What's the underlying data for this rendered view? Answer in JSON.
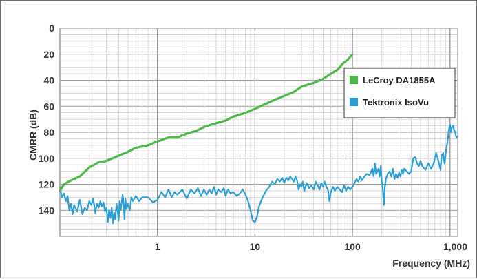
{
  "chart_data": {
    "type": "line",
    "xlabel": "Frequency (MHz)",
    "ylabel": "CMRR (dB)",
    "x_scale": "log",
    "xlim": [
      0.1,
      1200
    ],
    "ylim": [
      0,
      160
    ],
    "y_inverted": true,
    "x_ticks": [
      {
        "value": 1,
        "label": "1"
      },
      {
        "value": 10,
        "label": "10"
      },
      {
        "value": 100,
        "label": "100"
      },
      {
        "value": 1000,
        "label": "1,000"
      }
    ],
    "y_ticks": [
      {
        "value": 0,
        "label": "0"
      },
      {
        "value": 20,
        "label": "20"
      },
      {
        "value": 40,
        "label": "40"
      },
      {
        "value": 60,
        "label": "60"
      },
      {
        "value": 80,
        "label": "80"
      },
      {
        "value": 100,
        "label": "100"
      },
      {
        "value": 120,
        "label": "120"
      },
      {
        "value": 140,
        "label": "140"
      }
    ],
    "grid": true,
    "legend_position": "right",
    "series": [
      {
        "name": "LeCroy DA1855A",
        "color": "#4cb848",
        "points": [
          [
            0.1,
            125
          ],
          [
            0.11,
            120
          ],
          [
            0.13,
            117
          ],
          [
            0.16,
            114
          ],
          [
            0.2,
            107
          ],
          [
            0.25,
            103
          ],
          [
            0.3,
            102
          ],
          [
            0.4,
            98
          ],
          [
            0.5,
            95
          ],
          [
            0.6,
            92
          ],
          [
            0.8,
            90
          ],
          [
            1.0,
            87
          ],
          [
            1.3,
            84
          ],
          [
            1.6,
            84
          ],
          [
            2.0,
            81
          ],
          [
            2.5,
            79
          ],
          [
            3.0,
            76
          ],
          [
            4.0,
            73
          ],
          [
            5.0,
            71
          ],
          [
            6.0,
            68
          ],
          [
            8.0,
            65
          ],
          [
            10,
            62
          ],
          [
            13,
            58
          ],
          [
            16,
            55
          ],
          [
            20,
            52
          ],
          [
            25,
            49
          ],
          [
            30,
            45
          ],
          [
            40,
            42
          ],
          [
            50,
            39
          ],
          [
            60,
            35
          ],
          [
            70,
            32
          ],
          [
            80,
            27
          ],
          [
            90,
            24
          ],
          [
            100,
            20
          ]
        ]
      },
      {
        "name": "Tektronix IsoVu",
        "color": "#2b9fd4",
        "points": [
          [
            0.1,
            122
          ],
          [
            0.105,
            130
          ],
          [
            0.11,
            127
          ],
          [
            0.115,
            133
          ],
          [
            0.12,
            129
          ],
          [
            0.125,
            140
          ],
          [
            0.13,
            135
          ],
          [
            0.135,
            143
          ],
          [
            0.14,
            136
          ],
          [
            0.15,
            141
          ],
          [
            0.16,
            132
          ],
          [
            0.17,
            143
          ],
          [
            0.18,
            138
          ],
          [
            0.19,
            140
          ],
          [
            0.2,
            133
          ],
          [
            0.21,
            136
          ],
          [
            0.22,
            131
          ],
          [
            0.23,
            142
          ],
          [
            0.24,
            135
          ],
          [
            0.25,
            138
          ],
          [
            0.26,
            133
          ],
          [
            0.27,
            137
          ],
          [
            0.28,
            134
          ],
          [
            0.29,
            141
          ],
          [
            0.3,
            138
          ],
          [
            0.31,
            149
          ],
          [
            0.32,
            140
          ],
          [
            0.33,
            146
          ],
          [
            0.34,
            138
          ],
          [
            0.35,
            150
          ],
          [
            0.36,
            142
          ],
          [
            0.37,
            147
          ],
          [
            0.38,
            135
          ],
          [
            0.39,
            140
          ],
          [
            0.4,
            148
          ],
          [
            0.41,
            133
          ],
          [
            0.42,
            140
          ],
          [
            0.44,
            128
          ],
          [
            0.45,
            136
          ],
          [
            0.46,
            147
          ],
          [
            0.47,
            131
          ],
          [
            0.48,
            139
          ],
          [
            0.5,
            135
          ],
          [
            0.52,
            140
          ],
          [
            0.54,
            130
          ],
          [
            0.56,
            133
          ],
          [
            0.6,
            129
          ],
          [
            0.65,
            133
          ],
          [
            0.7,
            130
          ],
          [
            0.8,
            130
          ],
          [
            0.9,
            134
          ],
          [
            1.0,
            132
          ],
          [
            1.1,
            126
          ],
          [
            1.2,
            130
          ],
          [
            1.3,
            124
          ],
          [
            1.4,
            130
          ],
          [
            1.5,
            126
          ],
          [
            1.6,
            128
          ],
          [
            1.8,
            124
          ],
          [
            2.0,
            131
          ],
          [
            2.2,
            124
          ],
          [
            2.4,
            127
          ],
          [
            2.6,
            123
          ],
          [
            2.8,
            129
          ],
          [
            3.0,
            124
          ],
          [
            3.2,
            128
          ],
          [
            3.4,
            124
          ],
          [
            3.6,
            127
          ],
          [
            3.8,
            122
          ],
          [
            4.0,
            128
          ],
          [
            4.2,
            124
          ],
          [
            4.5,
            126
          ],
          [
            4.8,
            123
          ],
          [
            5.0,
            129
          ],
          [
            5.3,
            124
          ],
          [
            5.6,
            127
          ],
          [
            6.0,
            126
          ],
          [
            6.5,
            129
          ],
          [
            7.0,
            127
          ],
          [
            7.5,
            124
          ],
          [
            8.0,
            128
          ],
          [
            8.5,
            133
          ],
          [
            9.0,
            140
          ],
          [
            9.5,
            148
          ],
          [
            10,
            149
          ],
          [
            10.5,
            145
          ],
          [
            11,
            137
          ],
          [
            12,
            130
          ],
          [
            13,
            125
          ],
          [
            14,
            122
          ],
          [
            15,
            118
          ],
          [
            16,
            120
          ],
          [
            17,
            116
          ],
          [
            18,
            118
          ],
          [
            19,
            115
          ],
          [
            20,
            119
          ],
          [
            21,
            115
          ],
          [
            22,
            117
          ],
          [
            23,
            114
          ],
          [
            24,
            116
          ],
          [
            25,
            118
          ],
          [
            26,
            114
          ],
          [
            27,
            117
          ],
          [
            28,
            124
          ],
          [
            29,
            120
          ],
          [
            30,
            122
          ],
          [
            31,
            118
          ],
          [
            32,
            125
          ],
          [
            34,
            119
          ],
          [
            36,
            123
          ],
          [
            38,
            121
          ],
          [
            40,
            124
          ],
          [
            42,
            118
          ],
          [
            44,
            121
          ],
          [
            46,
            124
          ],
          [
            48,
            119
          ],
          [
            50,
            122
          ],
          [
            52,
            118
          ],
          [
            54,
            122
          ],
          [
            56,
            124
          ],
          [
            58,
            133
          ],
          [
            60,
            126
          ],
          [
            63,
            122
          ],
          [
            66,
            125
          ],
          [
            70,
            122
          ],
          [
            74,
            124
          ],
          [
            78,
            126
          ],
          [
            82,
            121
          ],
          [
            86,
            125
          ],
          [
            90,
            122
          ],
          [
            95,
            124
          ],
          [
            100,
            122
          ],
          [
            105,
            119
          ],
          [
            110,
            116
          ],
          [
            115,
            118
          ],
          [
            120,
            114
          ],
          [
            125,
            117
          ],
          [
            130,
            115
          ],
          [
            140,
            112
          ],
          [
            150,
            113
          ],
          [
            160,
            108
          ],
          [
            165,
            114
          ],
          [
            170,
            104
          ],
          [
            175,
            112
          ],
          [
            180,
            110
          ],
          [
            185,
            108
          ],
          [
            190,
            114
          ],
          [
            195,
            106
          ],
          [
            200,
            118
          ],
          [
            205,
            125
          ],
          [
            210,
            136
          ],
          [
            215,
            122
          ],
          [
            220,
            116
          ],
          [
            230,
            112
          ],
          [
            240,
            110
          ],
          [
            250,
            114
          ],
          [
            260,
            108
          ],
          [
            270,
            116
          ],
          [
            280,
            112
          ],
          [
            290,
            115
          ],
          [
            300,
            111
          ],
          [
            310,
            114
          ],
          [
            320,
            109
          ],
          [
            330,
            112
          ],
          [
            340,
            108
          ],
          [
            360,
            110
          ],
          [
            380,
            112
          ],
          [
            400,
            110
          ],
          [
            420,
            100
          ],
          [
            440,
            99
          ],
          [
            460,
            104
          ],
          [
            480,
            106
          ],
          [
            500,
            102
          ],
          [
            520,
            106
          ],
          [
            560,
            109
          ],
          [
            600,
            104
          ],
          [
            640,
            108
          ],
          [
            680,
            104
          ],
          [
            720,
            96
          ],
          [
            760,
            102
          ],
          [
            800,
            109
          ],
          [
            820,
            98
          ],
          [
            850,
            96
          ],
          [
            880,
            104
          ],
          [
            900,
            98
          ],
          [
            920,
            92
          ],
          [
            940,
            88
          ],
          [
            960,
            82
          ],
          [
            980,
            77
          ],
          [
            1000,
            74
          ],
          [
            1020,
            80
          ],
          [
            1050,
            76
          ],
          [
            1080,
            75
          ],
          [
            1100,
            78
          ],
          [
            1130,
            80
          ],
          [
            1150,
            83
          ],
          [
            1180,
            84
          ],
          [
            1200,
            83
          ]
        ]
      }
    ]
  }
}
